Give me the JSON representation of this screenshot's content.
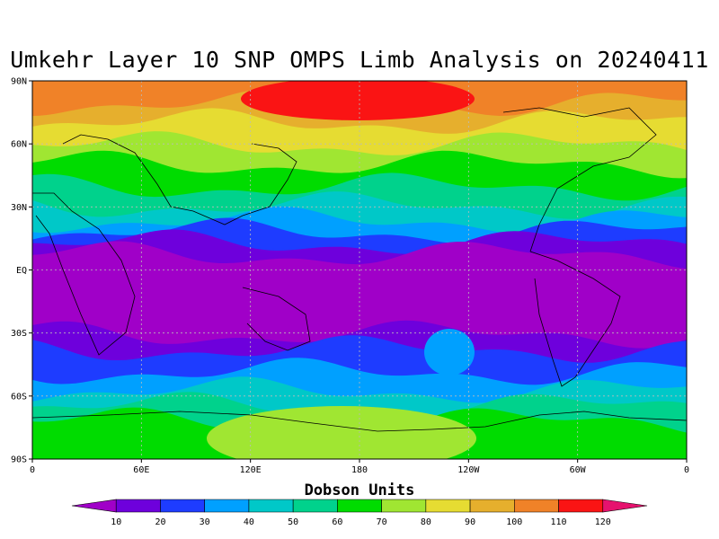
{
  "title": "Umkehr Layer 10 SNP OMPS Limb Analysis on 20240411",
  "lat_labels": [
    "90N",
    "60N",
    "30N",
    "EQ",
    "30S",
    "60S",
    "90S"
  ],
  "lon_labels": [
    "0",
    "60E",
    "120E",
    "180",
    "120W",
    "60W",
    "0"
  ],
  "colorbar": {
    "title": "Dobson Units",
    "ticks": [
      "10",
      "20",
      "30",
      "40",
      "50",
      "60",
      "70",
      "80",
      "90",
      "100",
      "110",
      "120"
    ],
    "colors": [
      "#a000c8",
      "#6e00dc",
      "#1e3cff",
      "#00a0ff",
      "#00c8c8",
      "#00d28c",
      "#00dc00",
      "#a0e632",
      "#e6dc32",
      "#e6af2d",
      "#f08228",
      "#fa1414",
      "#e6126e"
    ]
  },
  "chart_data": {
    "type": "heatmap",
    "title": "Umkehr Layer 10 SNP OMPS Limb Analysis on 20240411",
    "units": "Dobson Units",
    "x_range": [
      "0",
      "0 (360)"
    ],
    "y_range": [
      "90S",
      "90N"
    ],
    "zonal_band_values_by_latitude": [
      {
        "lat": "90N",
        "value": 100
      },
      {
        "lat": "75N",
        "value": 90
      },
      {
        "lat": "60N",
        "value": 75
      },
      {
        "lat": "45N",
        "value": 50
      },
      {
        "lat": "30N",
        "value": 25
      },
      {
        "lat": "EQ",
        "value": 10
      },
      {
        "lat": "30S",
        "value": 20
      },
      {
        "lat": "45S",
        "value": 35
      },
      {
        "lat": "60S",
        "value": 55
      },
      {
        "lat": "75S",
        "value": 70
      },
      {
        "lat": "90S",
        "value": 70
      }
    ],
    "features": [
      {
        "name": "north polar maximum",
        "approx_lon": "180",
        "approx_lat": "85N",
        "value": 115
      },
      {
        "name": "antarctic maximum",
        "approx_lon": "180",
        "approx_lat": "80S",
        "value": 80
      }
    ]
  }
}
